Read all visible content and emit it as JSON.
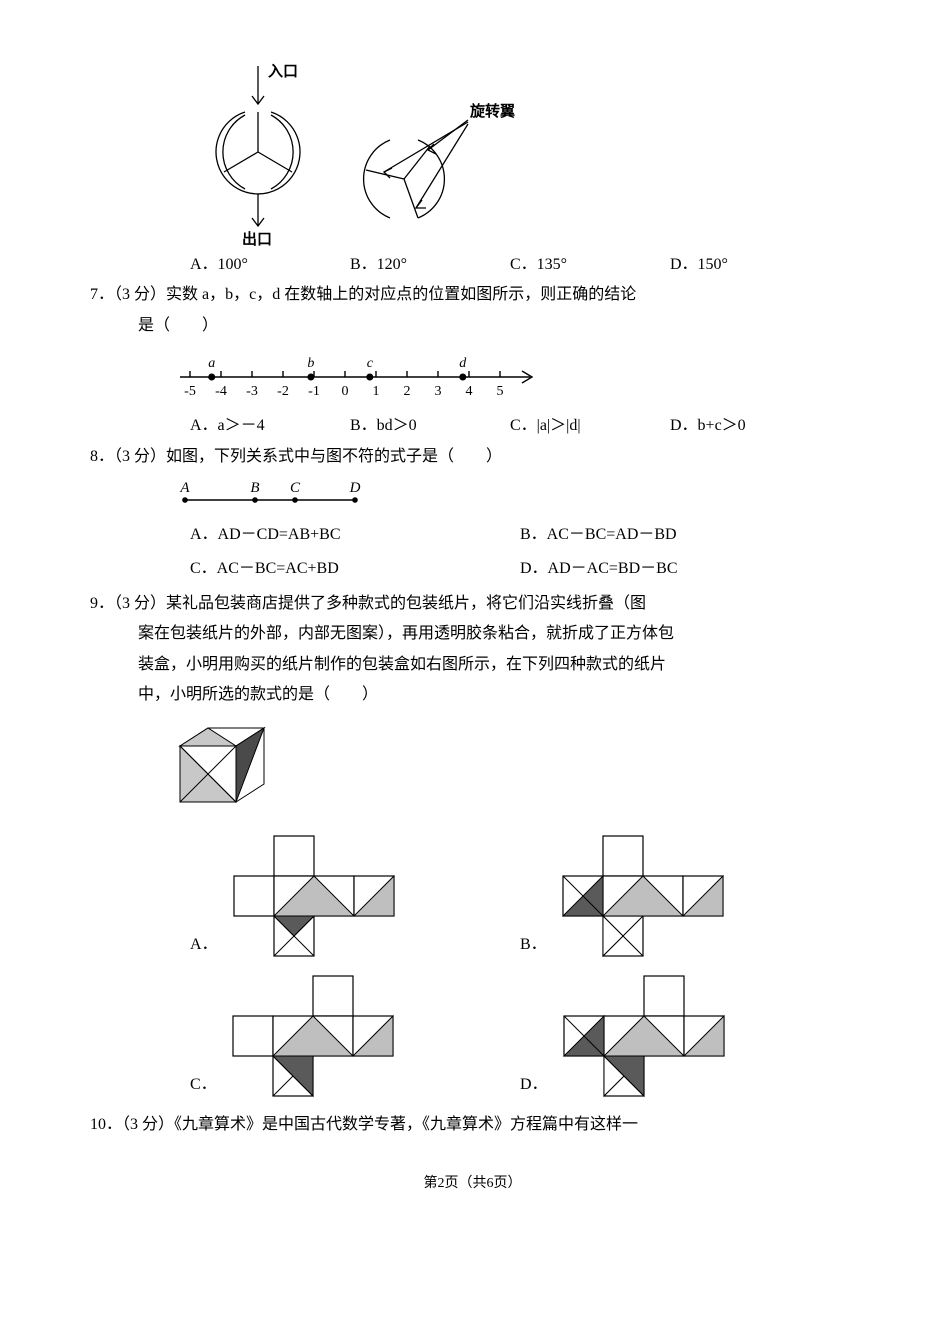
{
  "q6": {
    "labels": {
      "entry": "入口",
      "exit": "出口",
      "rotor": "旋转翼"
    },
    "options": {
      "A": "A．100°",
      "B": "B．120°",
      "C": "C．135°",
      "D": "D．150°"
    },
    "diagram": {
      "circle_r": 42,
      "arrow_color": "#000",
      "stroke": "#000",
      "stroke_width": 1.2
    }
  },
  "q7": {
    "stem_prefix": "7．（3 分）实数 a，b，c，d 在数轴上的对应点的位置如图所示，则正确的结论",
    "stem_suffix": "是（　　）",
    "numberline": {
      "ticks": [
        -5,
        -4,
        -3,
        -2,
        -1,
        0,
        1,
        2,
        3,
        4,
        5
      ],
      "points": {
        "a": -4.3,
        "b": -1.1,
        "c": 0.8,
        "d": 3.8
      },
      "stroke": "#000"
    },
    "options": {
      "A": "A．a＞－4",
      "B": "B．bd＞0",
      "C": "C．|a|＞|d|",
      "D": "D．b+c＞0"
    }
  },
  "q8": {
    "stem": "8．（3 分）如图，下列关系式中与图不符的式子是（　　）",
    "segment": {
      "points": [
        "A",
        "B",
        "C",
        "D"
      ],
      "positions": [
        0,
        70,
        110,
        170
      ]
    },
    "options": {
      "A": "A．AD－CD=AB+BC",
      "B": "B．AC－BC=AD－BD",
      "C": "C．AC－BC=AC+BD",
      "D": "D．AD－AC=BD－BC"
    }
  },
  "q9": {
    "stem1": "9．（3 分）某礼品包装商店提供了多种款式的包装纸片，将它们沿实线折叠（图",
    "stem2": "案在包装纸片的外部，内部无图案），再用透明胶条粘合，就折成了正方体包",
    "stem3": "装盒，小明用购买的纸片制作的包装盒如右图所示，在下列四种款式的纸片",
    "stem4": "中，小明所选的款式的是（　　）",
    "cube": {
      "size": 90,
      "dark": "#4a4a4a",
      "light": "#c8c8c8",
      "line": "#000"
    },
    "nets": {
      "cell": 40,
      "dark": "#5a5a5a",
      "light": "#bfbfbf",
      "line": "#000"
    },
    "options": {
      "A": "A．",
      "B": "B．",
      "C": "C．",
      "D": "D．"
    }
  },
  "q10": {
    "stem": "10．（3 分）《九章算术》是中国古代数学专著，《九章算术》方程篇中有这样一"
  },
  "footer": "第2页（共6页）"
}
